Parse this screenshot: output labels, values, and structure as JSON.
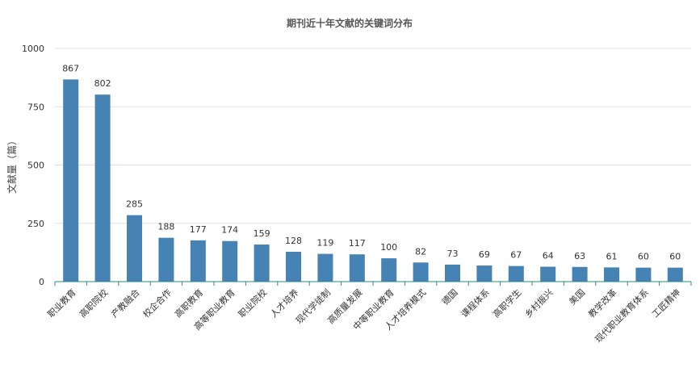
{
  "chart_data": {
    "type": "bar",
    "title": "期刊近十年文献的关键词分布",
    "xlabel": "",
    "ylabel": "文献量（篇）",
    "ylim": [
      0,
      1000
    ],
    "yticks": [
      0,
      250,
      500,
      750,
      1000
    ],
    "grid": true,
    "legend": "none",
    "bar_color": "#4682b4",
    "axis_color": "#2d8a8a",
    "categories": [
      "职业教育",
      "高职院校",
      "产教融合",
      "校企合作",
      "高职教育",
      "高等职业教育",
      "职业院校",
      "人才培养",
      "现代学徒制",
      "高质量发展",
      "中等职业教育",
      "人才培养模式",
      "德国",
      "课程体系",
      "高职学生",
      "乡村振兴",
      "美国",
      "教学改革",
      "现代职业教育体系",
      "工匠精神"
    ],
    "values": [
      867,
      802,
      285,
      188,
      177,
      174,
      159,
      128,
      119,
      117,
      100,
      82,
      73,
      69,
      67,
      64,
      63,
      61,
      60,
      60
    ]
  }
}
